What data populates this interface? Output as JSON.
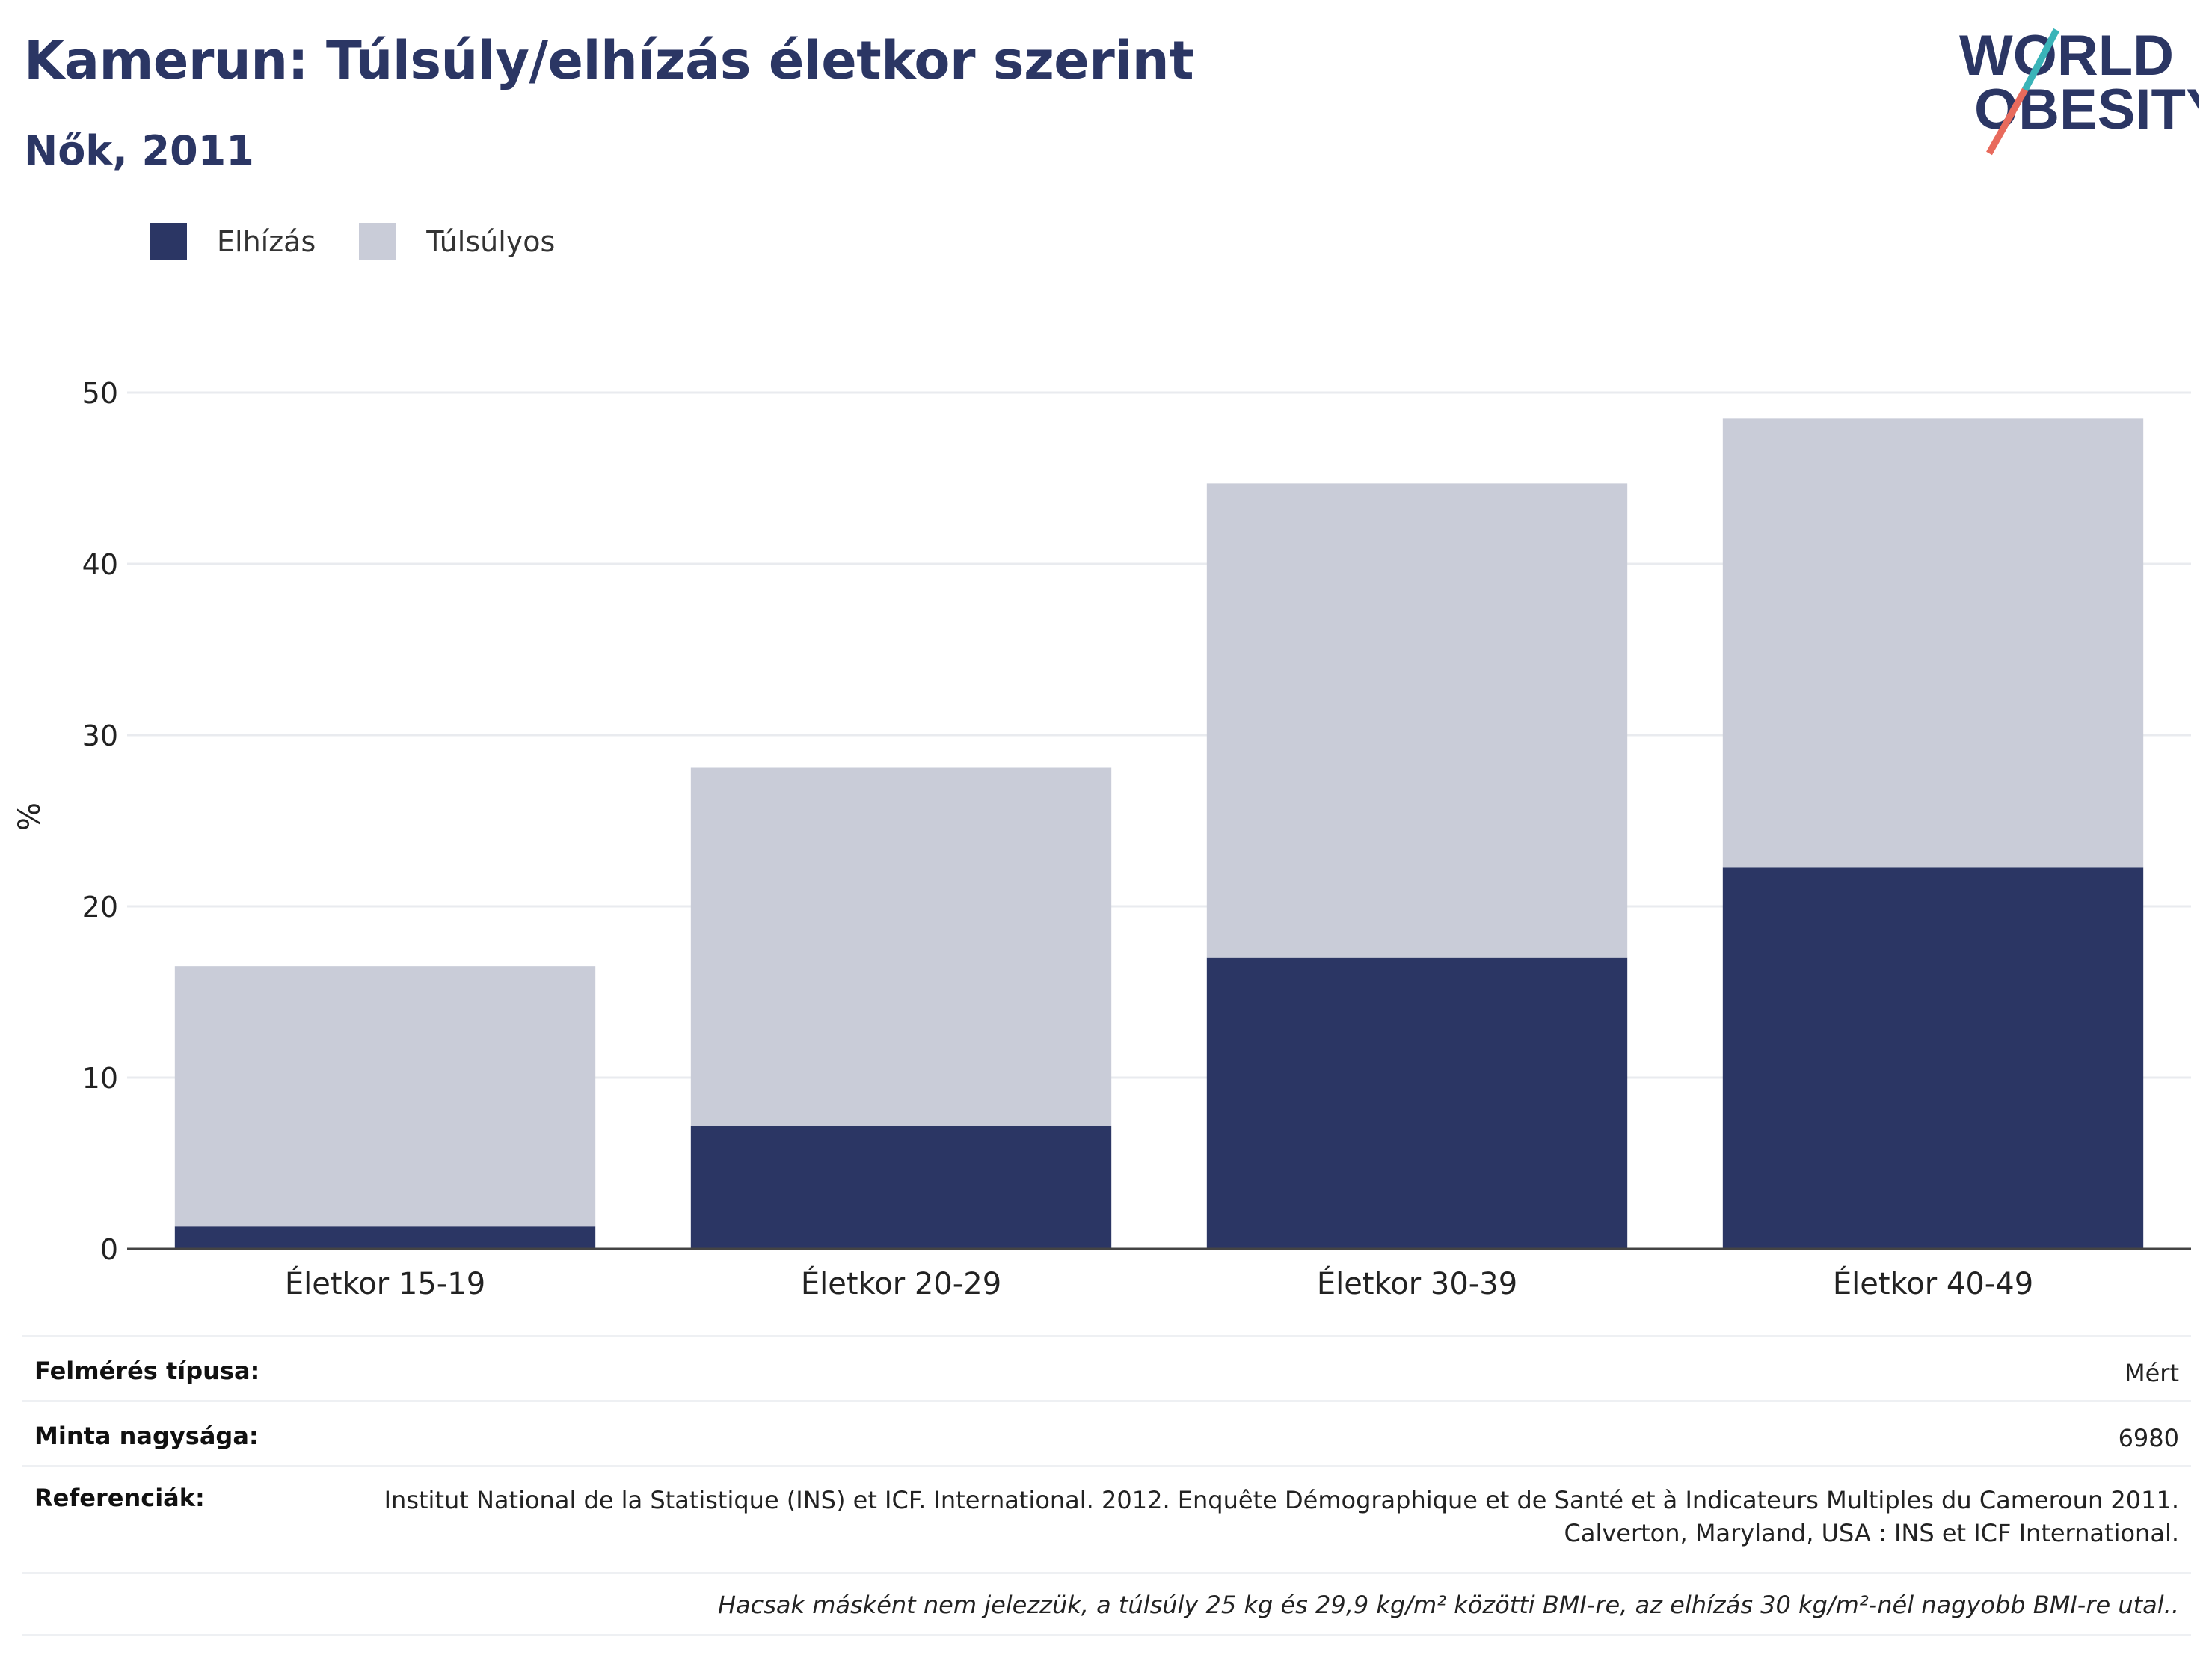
{
  "header": {
    "title": "Kamerun: Túlsúly/elhízás életkor szerint",
    "subtitle": "Nők, 2011"
  },
  "logo": {
    "line1": "WORLD",
    "line2": "OBESITY"
  },
  "colors": {
    "obesity": "#2b3664",
    "overweight": "#c9ccd8",
    "accent_teal": "#3ab4b8",
    "accent_red": "#e86a5c"
  },
  "legend": [
    {
      "label": "Elhízás",
      "color": "#2b3664"
    },
    {
      "label": "Túlsúlyos",
      "color": "#c9ccd8"
    }
  ],
  "chart_data": {
    "type": "bar",
    "stacked": true,
    "categories": [
      "Életkor 15-19",
      "Életkor 20-29",
      "Életkor 30-39",
      "Életkor 40-49"
    ],
    "series": [
      {
        "name": "Elhízás",
        "values": [
          1.3,
          7.2,
          17.0,
          22.3
        ]
      },
      {
        "name": "Túlsúlyos",
        "values": [
          15.2,
          20.9,
          27.7,
          26.2
        ]
      }
    ],
    "ylabel": "%",
    "ylim": [
      0,
      50
    ],
    "yticks": [
      0,
      10,
      20,
      30,
      40,
      50
    ],
    "grid": true,
    "legend_position": "top-left"
  },
  "info": {
    "survey_type_label": "Felmérés típusa:",
    "survey_type_value": "Mért",
    "sample_size_label": "Minta nagysága:",
    "sample_size_value": "6980",
    "references_label": "Referenciák:",
    "references_value": "Institut National de la Statistique (INS) et ICF. International. 2012. Enquête Démographique et de Santé et à Indicateurs Multiples du Cameroun 2011. Calverton, Maryland, USA : INS et ICF International.",
    "note": "Hacsak másként nem jelezzük, a túlsúly 25 kg és 29,9 kg/m² közötti BMI-re, az elhízás 30 kg/m²-nél nagyobb BMI-re utal.."
  }
}
